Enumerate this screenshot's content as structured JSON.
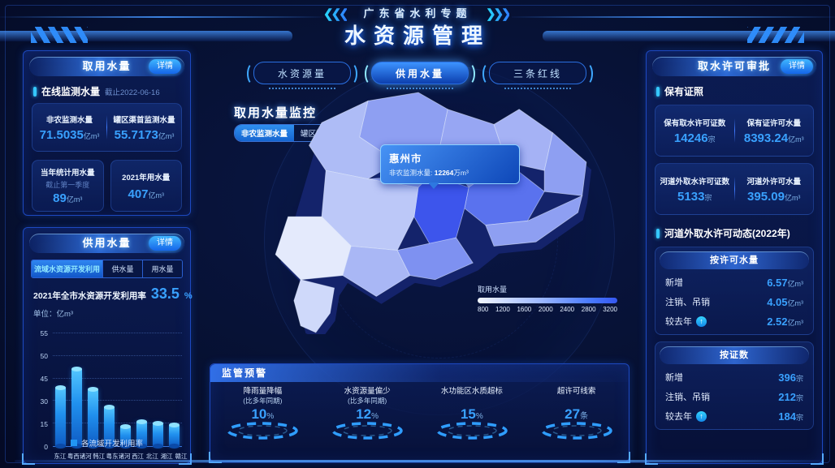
{
  "header": {
    "subtitle": "广东省水利专题",
    "title": "水资源管理"
  },
  "colors": {
    "accent": "#39a1ff",
    "cyan": "#35c8ff",
    "panel_border": "#1d49c0",
    "bar": "#2196f3",
    "active_tab": "#1976d2",
    "map_selected": "#3d55ec"
  },
  "panels": {
    "water_intake": {
      "title": "取用水量",
      "detail": "详情",
      "section_label": "在线监测水量",
      "section_note": "截止2022-06-16",
      "row1": [
        {
          "label": "非农监测水量",
          "value": "71.5035",
          "unit": "亿m³"
        },
        {
          "label": "罐区渠首监测水量",
          "value": "55.7173",
          "unit": "亿m³"
        }
      ],
      "row2": [
        {
          "label": "当年统计用水量",
          "note": "截止第一季度",
          "value": "89",
          "unit": "亿m³"
        },
        {
          "label": "2021年用水量",
          "note": "",
          "value": "407",
          "unit": "亿m³"
        }
      ]
    },
    "supply_use": {
      "title": "供用水量",
      "detail": "详情",
      "tabs": [
        "流域水资源开发利用",
        "供水量",
        "用水量"
      ],
      "active_tab": 0,
      "stat_label": "2021年全市水资源开发利用率",
      "stat_value": "33.5",
      "stat_unit": "%"
    },
    "center_tabs": {
      "items": [
        "水资源量",
        "供用水量",
        "三条红线"
      ],
      "active": 1
    },
    "monitor": {
      "title": "取用水量监控",
      "toggles": [
        "非农监测水量",
        "罐区渠首监测水量"
      ],
      "active_toggle": 0,
      "tooltip": {
        "city": "惠州市",
        "label": "非农监测水量: ",
        "value": "12264",
        "unit": "万m³"
      },
      "legend_label": "取用水量",
      "legend_ticks": [
        "800",
        "1200",
        "1600",
        "2000",
        "2400",
        "2800",
        "3200"
      ]
    },
    "warning": {
      "title": "监管预警",
      "items": [
        {
          "label": "降雨量降幅",
          "sub": "(比多年同期)",
          "value": "10",
          "unit": "%"
        },
        {
          "label": "水资源量偏少",
          "sub": "(比多年同期)",
          "value": "12",
          "unit": "%"
        },
        {
          "label": "水功能区水质超标",
          "sub": "",
          "value": "15",
          "unit": "%"
        },
        {
          "label": "超许可线索",
          "sub": "",
          "value": "27",
          "unit": "条"
        }
      ]
    },
    "permit": {
      "title": "取水许可审批",
      "detail": "详情",
      "marker1": "保有证照",
      "card1": [
        {
          "label": "保有取水许可证数",
          "value": "14246",
          "unit": "宗"
        },
        {
          "label": "保有证许可水量",
          "value": "8393.24",
          "unit": "亿m³"
        }
      ],
      "card2": [
        {
          "label": "河道外取水许可证数",
          "value": "5133",
          "unit": "宗"
        },
        {
          "label": "河道外许可水量",
          "value": "395.09",
          "unit": "亿m³"
        }
      ],
      "marker2": "河道外取水许可动态(2022年)",
      "dynamics": [
        {
          "header": "按许可水量",
          "rows": [
            {
              "label": "新增",
              "value": "6.57",
              "unit": "亿m³"
            },
            {
              "label": "注销、吊销",
              "value": "4.05",
              "unit": "亿m³"
            },
            {
              "label": "较去年",
              "value": "2.52",
              "unit": "亿m³"
            }
          ]
        },
        {
          "header": "按证数",
          "rows": [
            {
              "label": "新增",
              "value": "396",
              "unit": "宗"
            },
            {
              "label": "注销、吊销",
              "value": "212",
              "unit": "宗"
            },
            {
              "label": "较去年",
              "value": "184",
              "unit": "宗"
            }
          ]
        }
      ]
    }
  },
  "chart_data": {
    "type": "bar",
    "title": "各流域开发利用率",
    "unit_label": "单位：亿m³",
    "categories": [
      "东江",
      "粤西诸河",
      "韩江",
      "粤东诸河",
      "西江",
      "北江",
      "湘江",
      "赣江"
    ],
    "values": [
      39,
      47,
      38,
      26,
      13,
      16,
      15,
      14
    ],
    "y_ticks": [
      "55",
      "50",
      "45",
      "30",
      "15",
      "0"
    ],
    "ylim": [
      0,
      55
    ],
    "legend": [
      "各流域开发利用率"
    ],
    "grid": "dotted"
  }
}
